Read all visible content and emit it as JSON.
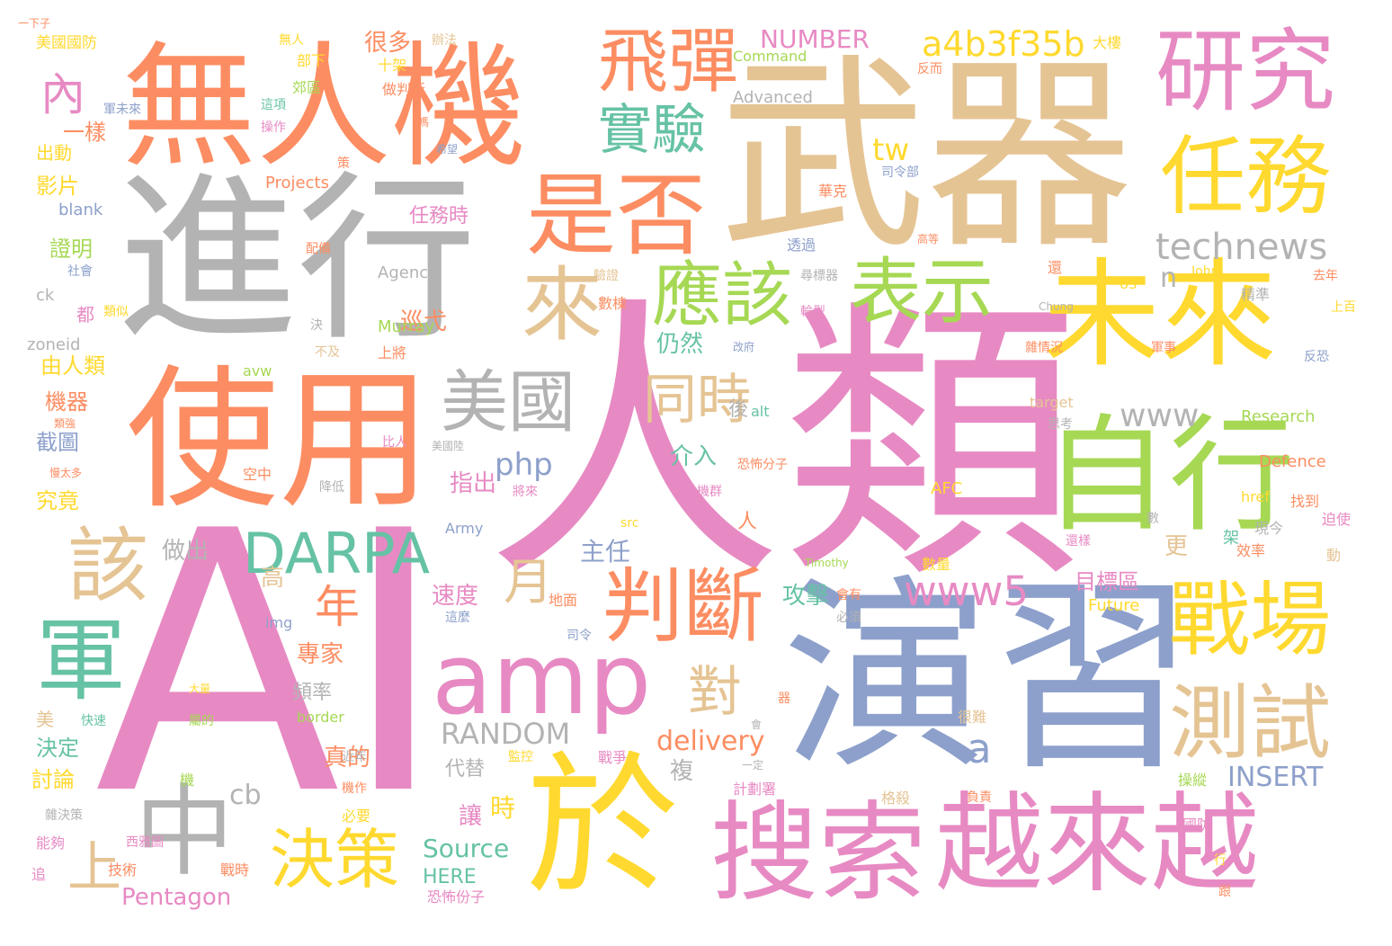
{
  "palette": {
    "pink": "#e78ac3",
    "orange": "#fc8d62",
    "gray": "#b3b3b3",
    "tan": "#e5c494",
    "yellow": "#ffd92f",
    "green": "#a6d854",
    "teal": "#66c2a5",
    "blue": "#8da0cb"
  },
  "words": [
    {
      "text": "AI",
      "color": "pink"
    },
    {
      "text": "人類",
      "color": "pink"
    },
    {
      "text": "演習",
      "color": "blue"
    },
    {
      "text": "進行",
      "color": "gray"
    },
    {
      "text": "武器",
      "color": "tan"
    },
    {
      "text": "無人機",
      "color": "orange"
    },
    {
      "text": "使用",
      "color": "orange"
    },
    {
      "text": "未來",
      "color": "yellow"
    },
    {
      "text": "自行",
      "color": "green"
    },
    {
      "text": "於",
      "color": "yellow"
    },
    {
      "text": "越來越",
      "color": "pink"
    },
    {
      "text": "搜索",
      "color": "pink"
    },
    {
      "text": "amp",
      "color": "pink"
    },
    {
      "text": "研究",
      "color": "pink"
    },
    {
      "text": "任務",
      "color": "yellow"
    },
    {
      "text": "是否",
      "color": "orange"
    },
    {
      "text": "飛彈",
      "color": "orange"
    },
    {
      "text": "來",
      "color": "tan"
    },
    {
      "text": "應該",
      "color": "green"
    },
    {
      "text": "表示",
      "color": "green"
    },
    {
      "text": "判斷",
      "color": "orange"
    },
    {
      "text": "戰場",
      "color": "yellow"
    },
    {
      "text": "測試",
      "color": "tan"
    },
    {
      "text": "軍",
      "color": "teal"
    },
    {
      "text": "中",
      "color": "gray"
    },
    {
      "text": "DARPA",
      "color": "teal"
    },
    {
      "text": "該",
      "color": "tan"
    },
    {
      "text": "美國",
      "color": "gray"
    },
    {
      "text": "決策",
      "color": "yellow"
    },
    {
      "text": "實驗",
      "color": "teal"
    },
    {
      "text": "同時",
      "color": "tan"
    },
    {
      "text": "technews",
      "color": "gray"
    },
    {
      "text": "www5",
      "color": "pink"
    },
    {
      "text": "a4b3f35b",
      "color": "yellow"
    },
    {
      "text": "對",
      "color": "tan"
    },
    {
      "text": "月",
      "color": "tan"
    },
    {
      "text": "年",
      "color": "orange"
    },
    {
      "text": "內",
      "color": "pink"
    },
    {
      "text": "上",
      "color": "tan"
    },
    {
      "text": "www",
      "color": "gray"
    },
    {
      "text": "a",
      "color": "blue"
    },
    {
      "text": "tw",
      "color": "yellow"
    },
    {
      "text": "n",
      "color": "gray"
    },
    {
      "text": "php",
      "color": "blue"
    },
    {
      "text": "delivery",
      "color": "orange"
    },
    {
      "text": "RANDOM",
      "color": "gray"
    },
    {
      "text": "INSERT",
      "color": "blue"
    },
    {
      "text": "NUMBER",
      "color": "pink"
    },
    {
      "text": "cb",
      "color": "gray"
    },
    {
      "text": "Source",
      "color": "teal"
    },
    {
      "text": "HERE",
      "color": "teal"
    },
    {
      "text": "Pentagon",
      "color": "pink"
    },
    {
      "text": "仍然",
      "color": "teal"
    },
    {
      "text": "目標區",
      "color": "pink"
    },
    {
      "text": "真的",
      "color": "orange"
    },
    {
      "text": "指出",
      "color": "pink"
    },
    {
      "text": "速度",
      "color": "pink"
    },
    {
      "text": "主任",
      "color": "blue"
    },
    {
      "text": "攻擊",
      "color": "teal"
    },
    {
      "text": "做出",
      "color": "gray"
    },
    {
      "text": "介入",
      "color": "teal"
    },
    {
      "text": "巡弋",
      "color": "orange"
    },
    {
      "text": "專家",
      "color": "orange"
    },
    {
      "text": "更",
      "color": "tan"
    },
    {
      "text": "高",
      "color": "tan"
    },
    {
      "text": "後",
      "color": "gray"
    },
    {
      "text": "人",
      "color": "orange"
    },
    {
      "text": "時",
      "color": "yellow"
    },
    {
      "text": "讓",
      "color": "pink"
    },
    {
      "text": "代替",
      "color": "gray"
    },
    {
      "text": "頻率",
      "color": "gray"
    },
    {
      "text": "複",
      "color": "gray"
    },
    {
      "text": "很多",
      "color": "orange"
    },
    {
      "text": "任務時",
      "color": "pink"
    },
    {
      "text": "證明",
      "color": "green"
    },
    {
      "text": "影片",
      "color": "yellow"
    },
    {
      "text": "由人類",
      "color": "yellow"
    },
    {
      "text": "機器",
      "color": "orange"
    },
    {
      "text": "截圖",
      "color": "blue"
    },
    {
      "text": "究竟",
      "color": "yellow"
    },
    {
      "text": "決定",
      "color": "teal"
    },
    {
      "text": "討論",
      "color": "yellow"
    },
    {
      "text": "一樣",
      "color": "orange"
    },
    {
      "text": "出動",
      "color": "yellow"
    },
    {
      "text": "美國國防",
      "color": "yellow"
    },
    {
      "text": "部下",
      "color": "yellow"
    },
    {
      "text": "郊區",
      "color": "green"
    },
    {
      "text": "無人",
      "color": "yellow"
    },
    {
      "text": "辦法",
      "color": "tan"
    },
    {
      "text": "十架",
      "color": "yellow"
    },
    {
      "text": "大樓",
      "color": "yellow"
    },
    {
      "text": "反而",
      "color": "orange"
    },
    {
      "text": "做判斷",
      "color": "orange"
    },
    {
      "text": "Command",
      "color": "green"
    },
    {
      "text": "Advanced",
      "color": "gray"
    },
    {
      "text": "Projects",
      "color": "orange"
    },
    {
      "text": "blank",
      "color": "blue"
    },
    {
      "text": "Agency",
      "color": "gray"
    },
    {
      "text": "Murray",
      "color": "green"
    },
    {
      "text": "ck",
      "color": "gray"
    },
    {
      "text": "zoneid",
      "color": "gray"
    },
    {
      "text": "avw",
      "color": "green"
    },
    {
      "text": "都",
      "color": "pink"
    },
    {
      "text": "美",
      "color": "tan"
    },
    {
      "text": "空中",
      "color": "orange"
    },
    {
      "text": "降低",
      "color": "gray"
    },
    {
      "text": "將來",
      "color": "pink"
    },
    {
      "text": "機群",
      "color": "pink"
    },
    {
      "text": "恐怖分子",
      "color": "orange"
    },
    {
      "text": "恐怖份子",
      "color": "pink"
    },
    {
      "text": "Army",
      "color": "blue"
    },
    {
      "text": "src",
      "color": "yellow"
    },
    {
      "text": "alt",
      "color": "teal"
    },
    {
      "text": "img",
      "color": "blue"
    },
    {
      "text": "border",
      "color": "green"
    },
    {
      "text": "Research",
      "color": "green"
    },
    {
      "text": "Defence",
      "color": "orange"
    },
    {
      "text": "AFC",
      "color": "yellow"
    },
    {
      "text": "Future",
      "color": "yellow"
    },
    {
      "text": "Timothy",
      "color": "green"
    },
    {
      "text": "John",
      "color": "yellow"
    },
    {
      "text": "Chung",
      "color": "gray"
    },
    {
      "text": "US",
      "color": "yellow"
    },
    {
      "text": "href",
      "color": "yellow"
    },
    {
      "text": "target",
      "color": "tan"
    },
    {
      "text": "找到",
      "color": "orange"
    },
    {
      "text": "迫使",
      "color": "pink"
    },
    {
      "text": "現今",
      "color": "gray"
    },
    {
      "text": "架",
      "color": "teal"
    },
    {
      "text": "動",
      "color": "tan"
    },
    {
      "text": "效率",
      "color": "orange"
    },
    {
      "text": "數量",
      "color": "yellow"
    },
    {
      "text": "地面",
      "color": "orange"
    },
    {
      "text": "司令",
      "color": "blue"
    },
    {
      "text": "司令部",
      "color": "blue"
    },
    {
      "text": "會有",
      "color": "orange"
    },
    {
      "text": "必須",
      "color": "gray"
    },
    {
      "text": "格殺",
      "color": "tan"
    },
    {
      "text": "計劃署",
      "color": "pink"
    },
    {
      "text": "一定",
      "color": "gray"
    },
    {
      "text": "操縱",
      "color": "green"
    },
    {
      "text": "國防",
      "color": "pink"
    },
    {
      "text": "行",
      "color": "yellow"
    },
    {
      "text": "跟",
      "color": "orange"
    },
    {
      "text": "負責",
      "color": "orange"
    },
    {
      "text": "很難",
      "color": "tan"
    },
    {
      "text": "器",
      "color": "orange"
    },
    {
      "text": "會",
      "color": "gray"
    },
    {
      "text": "戰爭",
      "color": "pink"
    },
    {
      "text": "監控",
      "color": "yellow"
    },
    {
      "text": "近年",
      "color": "gray"
    },
    {
      "text": "機作",
      "color": "orange"
    },
    {
      "text": "必要",
      "color": "yellow"
    },
    {
      "text": "機",
      "color": "green"
    },
    {
      "text": "大量",
      "color": "yellow"
    },
    {
      "text": "屬的",
      "color": "green"
    },
    {
      "text": "快速",
      "color": "teal"
    },
    {
      "text": "比人",
      "color": "pink"
    },
    {
      "text": "美國陸",
      "color": "gray"
    },
    {
      "text": "這麼",
      "color": "blue"
    },
    {
      "text": "決",
      "color": "gray"
    },
    {
      "text": "不及",
      "color": "tan"
    },
    {
      "text": "上將",
      "color": "orange"
    },
    {
      "text": "數棟",
      "color": "orange"
    },
    {
      "text": "配備",
      "color": "orange"
    },
    {
      "text": "驗證",
      "color": "tan"
    },
    {
      "text": "透過",
      "color": "blue"
    },
    {
      "text": "尋標器",
      "color": "gray"
    },
    {
      "text": "輪型",
      "color": "pink"
    },
    {
      "text": "改府",
      "color": "blue"
    },
    {
      "text": "思考",
      "color": "gray"
    },
    {
      "text": "雜情況",
      "color": "orange"
    },
    {
      "text": "軍事",
      "color": "orange"
    },
    {
      "text": "反恐",
      "color": "blue"
    },
    {
      "text": "上百",
      "color": "yellow"
    },
    {
      "text": "去年",
      "color": "orange"
    },
    {
      "text": "精準",
      "color": "gray"
    },
    {
      "text": "還",
      "color": "orange"
    },
    {
      "text": "高等",
      "color": "orange"
    },
    {
      "text": "華克",
      "color": "orange"
    },
    {
      "text": "策",
      "color": "orange"
    },
    {
      "text": "希望",
      "color": "blue"
    },
    {
      "text": "嗎",
      "color": "orange"
    },
    {
      "text": "操作",
      "color": "pink"
    },
    {
      "text": "這項",
      "color": "teal"
    },
    {
      "text": "軍未來",
      "color": "blue"
    },
    {
      "text": "社會",
      "color": "blue"
    },
    {
      "text": "類似",
      "color": "yellow"
    },
    {
      "text": "類強",
      "color": "orange"
    },
    {
      "text": "慢太多",
      "color": "orange"
    },
    {
      "text": "雜決策",
      "color": "gray"
    },
    {
      "text": "能夠",
      "color": "pink"
    },
    {
      "text": "追",
      "color": "pink"
    },
    {
      "text": "技術",
      "color": "orange"
    },
    {
      "text": "西雅圖",
      "color": "pink"
    },
    {
      "text": "戰時",
      "color": "orange"
    },
    {
      "text": "數",
      "color": "gray"
    },
    {
      "text": "還樣",
      "color": "pink"
    },
    {
      "text": "一下子",
      "color": "orange"
    }
  ]
}
